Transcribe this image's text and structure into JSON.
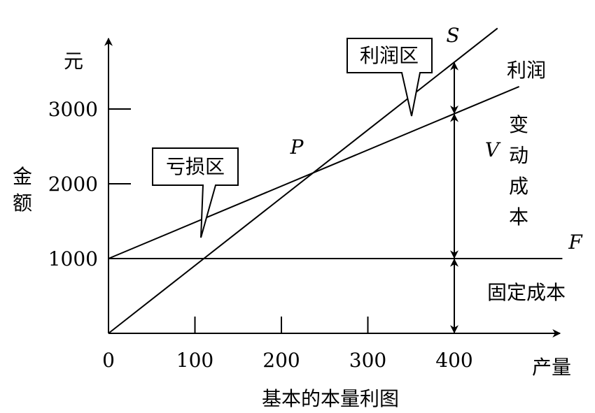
{
  "chart_data": {
    "type": "line",
    "title": "基本的本量利图",
    "xlabel": "产量",
    "ylabel_unit": "元",
    "ylabel": "金额",
    "xlim": [
      0,
      520
    ],
    "ylim": [
      0,
      3800
    ],
    "x_ticks": [
      {
        "value": 0,
        "label": "0"
      },
      {
        "value": 100,
        "label": "100"
      },
      {
        "value": 200,
        "label": "200"
      },
      {
        "value": 300,
        "label": "300"
      },
      {
        "value": 400,
        "label": "400"
      }
    ],
    "y_ticks": [
      {
        "value": 1000,
        "label": "1000"
      },
      {
        "value": 2000,
        "label": "2000"
      },
      {
        "value": 3000,
        "label": "3000"
      }
    ],
    "series": [
      {
        "name": "S",
        "x": [
          0,
          450
        ],
        "y": [
          0,
          4080
        ]
      },
      {
        "name": "F",
        "x": [
          0,
          525
        ],
        "y": [
          1000,
          1000
        ]
      }
    ],
    "unnamed_series": [
      {
        "x": [
          0,
          475
        ],
        "y": [
          1000,
          3300
        ]
      }
    ],
    "break_even_point": {
      "label": "P",
      "x": 242,
      "y": 2120
    },
    "annotations": {
      "profit_label": "利润",
      "variable_cost_letter": "V",
      "variable_cost_label": "变动成本",
      "fixed_cost_label": "固定成本",
      "profit_zone_callout": "利润区",
      "loss_zone_callout": "亏损区"
    },
    "grid": false
  }
}
